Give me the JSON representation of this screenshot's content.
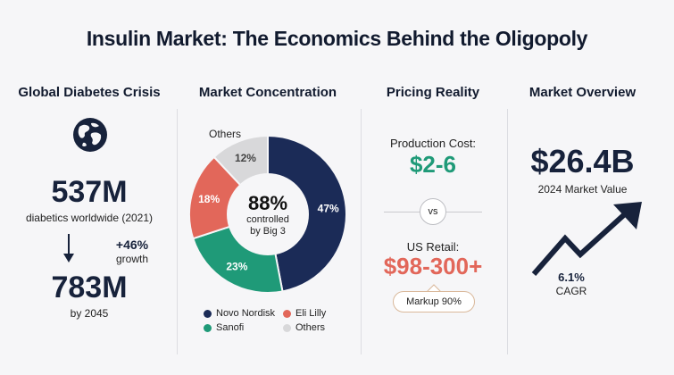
{
  "title": "Insulin Market: The Economics Behind the Oligopoly",
  "sections": {
    "diabetes": {
      "heading": "Global Diabetes Crisis",
      "current_value": "537M",
      "current_label": "diabetics worldwide (2021)",
      "growth_value": "+46%",
      "growth_label": "growth",
      "future_value": "783M",
      "future_label": "by 2045"
    },
    "concentration": {
      "heading": "Market Concentration",
      "center_value": "88%",
      "center_label_1": "controlled",
      "center_label_2": "by Big 3",
      "others_callout": "Others"
    },
    "pricing": {
      "heading": "Pricing Reality",
      "production_label": "Production Cost:",
      "production_value": "$2-6",
      "vs_label": "vs",
      "retail_label": "US Retail:",
      "retail_value": "$98-300+",
      "markup_label": "Markup 90%"
    },
    "overview": {
      "heading": "Market Overview",
      "market_value": "$26.4B",
      "market_label": "2024 Market Value",
      "cagr_value": "6.1%",
      "cagr_label": "CAGR"
    }
  },
  "chart_data": {
    "type": "pie",
    "categories": [
      "Novo Nordisk",
      "Sanofi",
      "Eli Lilly",
      "Others"
    ],
    "values": [
      47,
      23,
      18,
      12
    ],
    "value_labels": [
      "47%",
      "23%",
      "18%",
      "12%"
    ],
    "colors": [
      "#1b2b57",
      "#1f9a78",
      "#e2675a",
      "#d8d8da"
    ],
    "legend": [
      {
        "name": "Novo Nordisk",
        "color": "#1b2b57"
      },
      {
        "name": "Eli Lilly",
        "color": "#e2675a"
      },
      {
        "name": "Sanofi",
        "color": "#1f9a78"
      },
      {
        "name": "Others",
        "color": "#d8d8da"
      }
    ],
    "legend_placement": "bottom"
  },
  "colors": {
    "navy": "#17223b",
    "green": "#1f9a78",
    "red": "#e2675a"
  }
}
